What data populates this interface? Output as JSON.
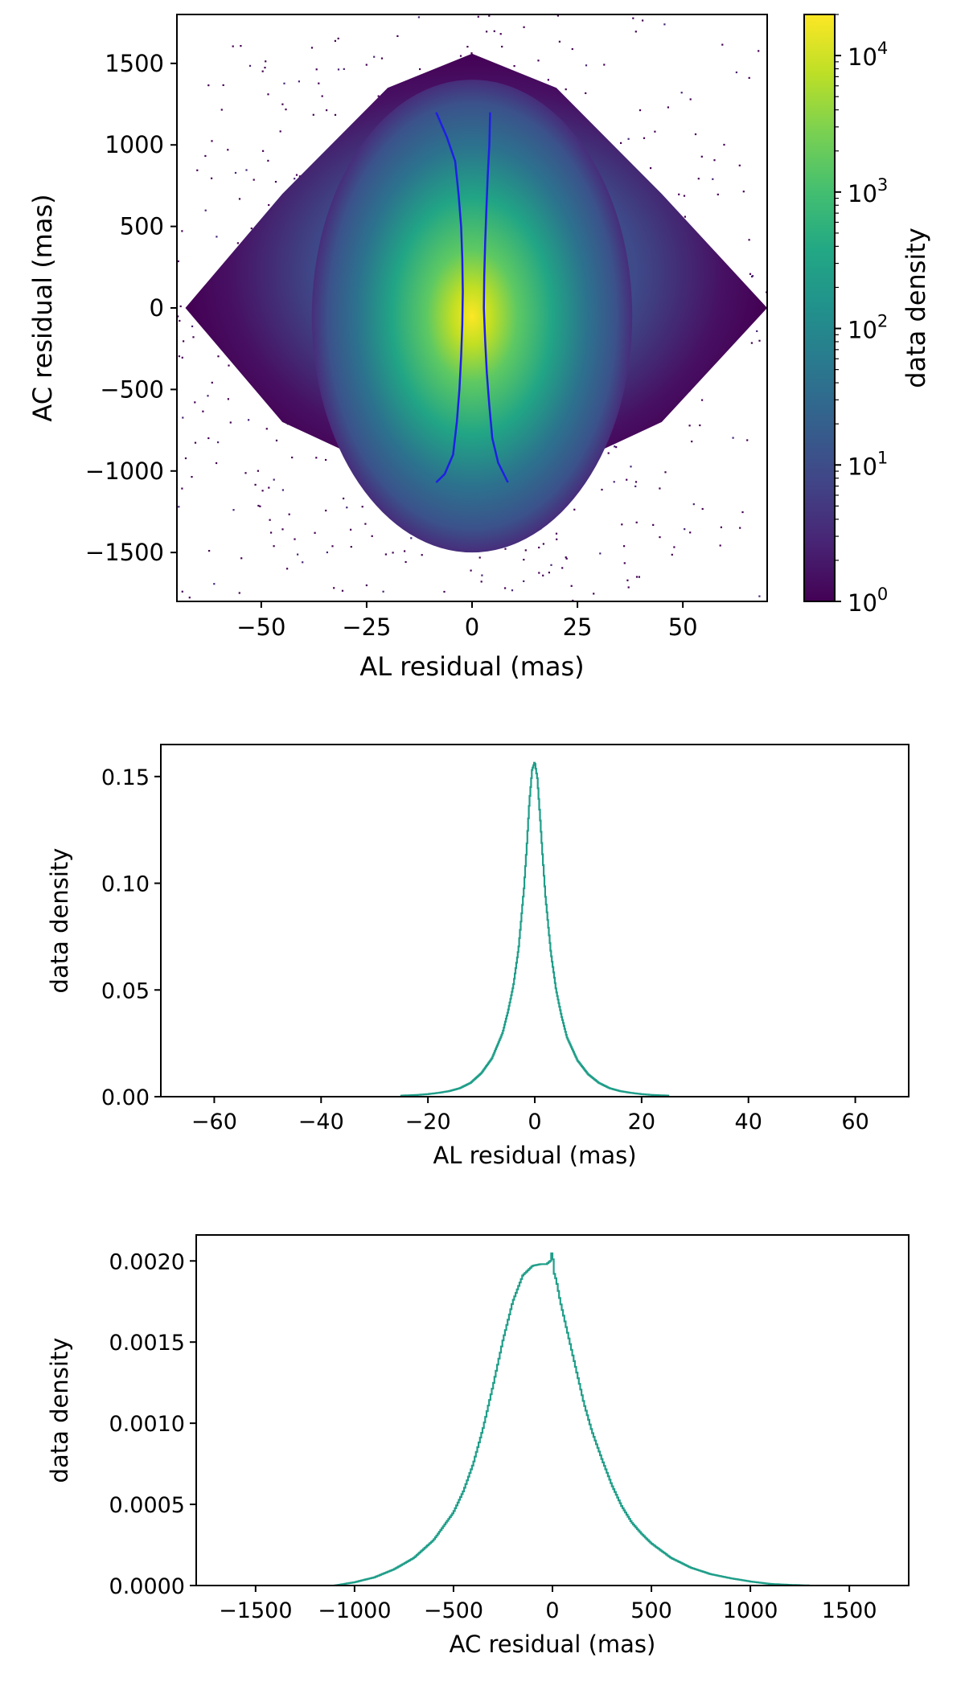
{
  "chart_data": [
    {
      "type": "heatmap",
      "title": "",
      "xlabel": "AL residual (mas)",
      "ylabel": "AC residual (mas)",
      "xlim": [
        -70,
        70
      ],
      "ylim": [
        -1800,
        1800
      ],
      "xticks": [
        -50,
        -25,
        0,
        25,
        50
      ],
      "xtick_labels": [
        "−50",
        "−25",
        "0",
        "25",
        "50"
      ],
      "yticks": [
        1500,
        1000,
        500,
        0,
        -500,
        -1000,
        -1500
      ],
      "ytick_labels": [
        "1500",
        "1000",
        "500",
        "0",
        "−500",
        "−1000",
        "−1500"
      ],
      "colorbar": {
        "label": "data density",
        "scale": "log",
        "range": [
          1,
          20000
        ],
        "ticks": [
          1,
          10,
          100,
          1000,
          10000
        ],
        "tick_bases": [
          "10",
          "10",
          "10",
          "10",
          "10"
        ],
        "tick_exponents": [
          "0",
          "1",
          "2",
          "3",
          "4"
        ],
        "colormap": "viridis"
      },
      "envelope_lines": {
        "color": "#1f1fe6",
        "left": [
          [
            -8.5,
            1200
          ],
          [
            -6,
            1050
          ],
          [
            -4,
            900
          ],
          [
            -3.2,
            700
          ],
          [
            -2.6,
            500
          ],
          [
            -2.3,
            300
          ],
          [
            -2.2,
            100
          ],
          [
            -2.3,
            -100
          ],
          [
            -2.6,
            -300
          ],
          [
            -3.0,
            -500
          ],
          [
            -3.6,
            -700
          ],
          [
            -4.5,
            -900
          ],
          [
            -6.5,
            -1020
          ],
          [
            -8.5,
            -1070
          ]
        ],
        "right": [
          [
            4.3,
            1200
          ],
          [
            4.1,
            1000
          ],
          [
            3.7,
            800
          ],
          [
            3.4,
            600
          ],
          [
            3.1,
            400
          ],
          [
            2.9,
            200
          ],
          [
            2.8,
            0
          ],
          [
            3.1,
            -200
          ],
          [
            3.5,
            -400
          ],
          [
            4.1,
            -600
          ],
          [
            4.8,
            -800
          ],
          [
            6.2,
            -950
          ],
          [
            8.5,
            -1070
          ]
        ]
      }
    },
    {
      "type": "line",
      "style": "step histogram",
      "title": "",
      "xlabel": "AL residual (mas)",
      "ylabel": "data density",
      "xlim": [
        -70,
        70
      ],
      "ylim": [
        0,
        0.165
      ],
      "xticks": [
        -60,
        -40,
        -20,
        0,
        20,
        40,
        60
      ],
      "xtick_labels": [
        "−60",
        "−40",
        "−20",
        "0",
        "20",
        "40",
        "60"
      ],
      "yticks": [
        0.0,
        0.05,
        0.1,
        0.15
      ],
      "ytick_labels": [
        "0.00",
        "0.05",
        "0.10",
        "0.15"
      ],
      "color": "#1f9e89",
      "series": [
        {
          "name": "AL residual",
          "x": [
            -25,
            -22,
            -20,
            -18,
            -16,
            -14,
            -12,
            -10,
            -8,
            -6,
            -5,
            -4,
            -3,
            -2,
            -1.5,
            -1,
            -0.5,
            0,
            0.5,
            1,
            1.5,
            2,
            3,
            4,
            5,
            6,
            8,
            10,
            12,
            14,
            16,
            18,
            20,
            22,
            25
          ],
          "values": [
            0.0005,
            0.0008,
            0.0012,
            0.0018,
            0.0026,
            0.004,
            0.0065,
            0.011,
            0.018,
            0.03,
            0.04,
            0.052,
            0.07,
            0.098,
            0.117,
            0.138,
            0.153,
            0.157,
            0.149,
            0.131,
            0.112,
            0.094,
            0.068,
            0.05,
            0.038,
            0.028,
            0.017,
            0.0105,
            0.0065,
            0.004,
            0.0026,
            0.0018,
            0.0012,
            0.0008,
            0.0005
          ]
        }
      ]
    },
    {
      "type": "line",
      "style": "step histogram",
      "title": "",
      "xlabel": "AC residual (mas)",
      "ylabel": "data density",
      "xlim": [
        -1800,
        1800
      ],
      "ylim": [
        0,
        0.00216
      ],
      "xticks": [
        -1500,
        -1000,
        -500,
        0,
        500,
        1000,
        1500
      ],
      "xtick_labels": [
        "−1500",
        "−1000",
        "−500",
        "0",
        "500",
        "1000",
        "1500"
      ],
      "yticks": [
        0.0,
        0.0005,
        0.001,
        0.0015,
        0.002
      ],
      "ytick_labels": [
        "0.0000",
        "0.0005",
        "0.0010",
        "0.0015",
        "0.0020"
      ],
      "color": "#1f9e89",
      "series": [
        {
          "name": "AC residual",
          "x": [
            -1100,
            -1000,
            -900,
            -800,
            -700,
            -600,
            -500,
            -450,
            -400,
            -350,
            -300,
            -250,
            -200,
            -150,
            -100,
            -60,
            -30,
            -10,
            0,
            5,
            10,
            20,
            40,
            80,
            120,
            160,
            200,
            250,
            300,
            350,
            400,
            450,
            500,
            600,
            700,
            800,
            900,
            1000,
            1100,
            1200,
            1300
          ],
          "values": [
            0.0,
            2e-05,
            5e-05,
            0.0001,
            0.00017,
            0.00028,
            0.00045,
            0.00058,
            0.00075,
            0.00097,
            0.00123,
            0.00151,
            0.00175,
            0.00191,
            0.00197,
            0.00198,
            0.00198,
            0.002,
            0.00207,
            0.00198,
            0.00192,
            0.00188,
            0.00175,
            0.00154,
            0.00133,
            0.00112,
            0.00095,
            0.00078,
            0.00062,
            0.00049,
            0.00039,
            0.00032,
            0.00026,
            0.00017,
            0.00011,
            7e-05,
            4.5e-05,
            2.5e-05,
            1e-05,
            4e-06,
            0.0
          ]
        }
      ]
    }
  ]
}
